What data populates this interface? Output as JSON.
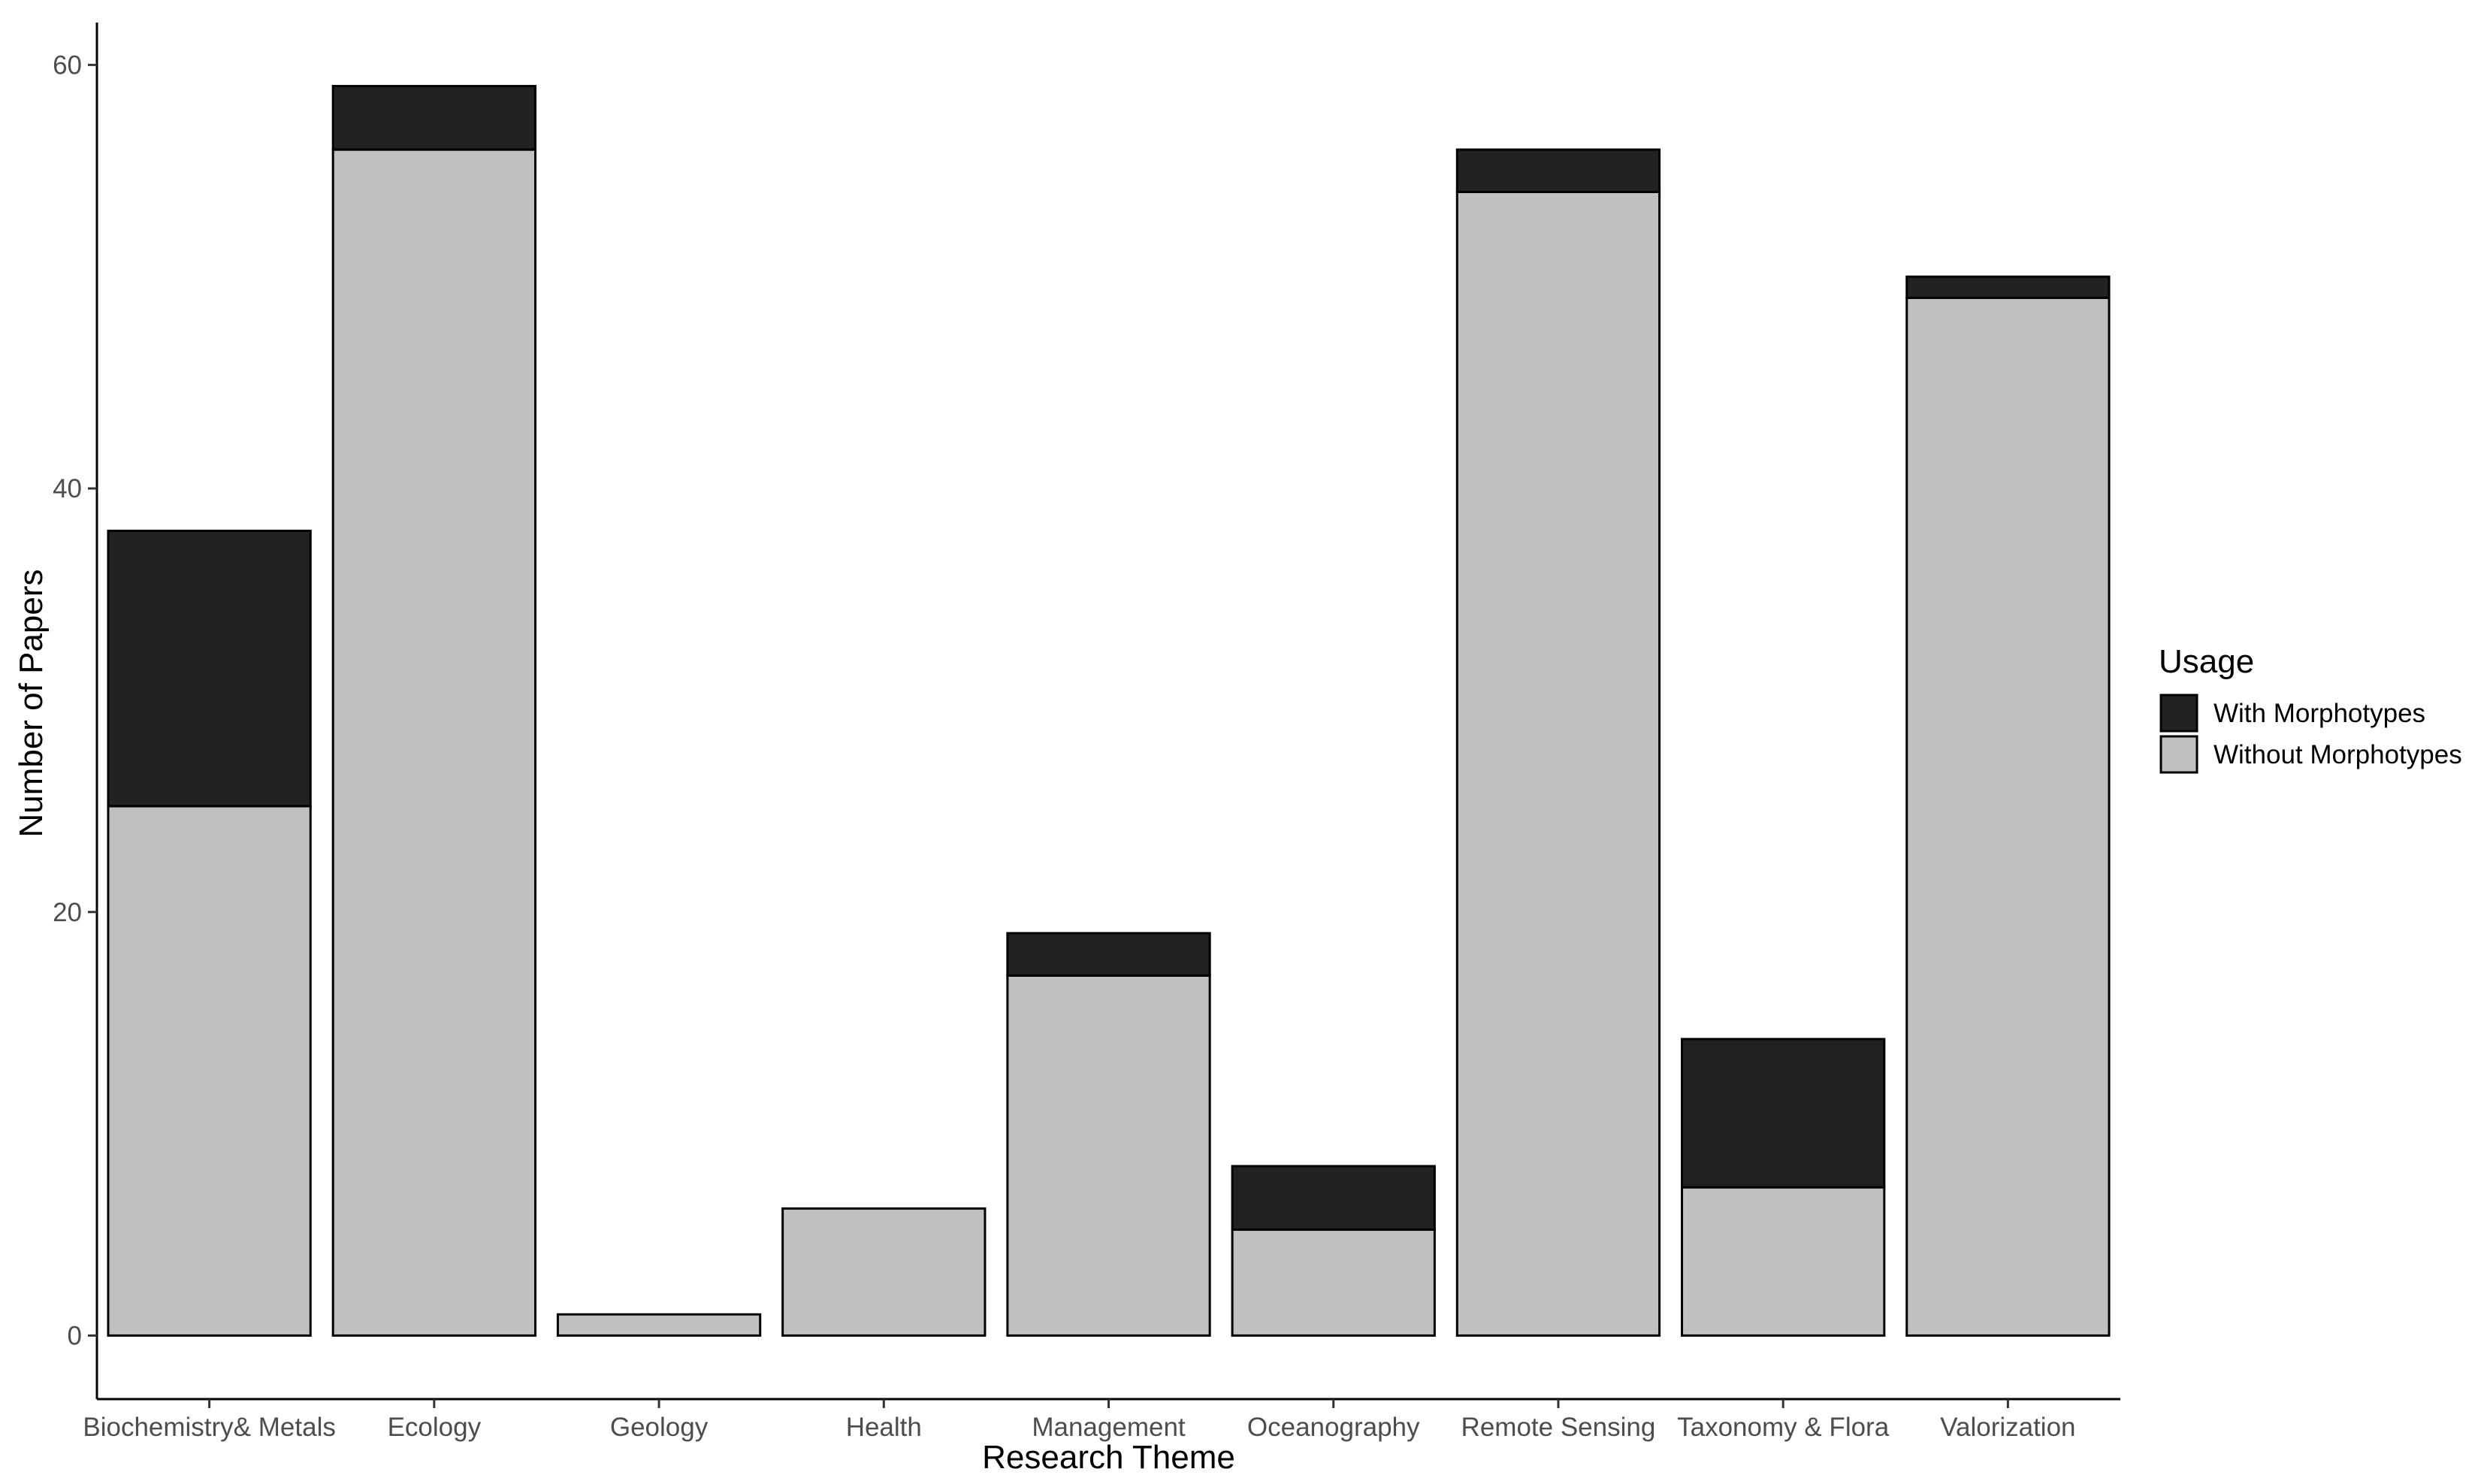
{
  "chart_data": {
    "type": "bar",
    "stacked": true,
    "categories": [
      "Biochemistry& Metals",
      "Ecology",
      "Geology",
      "Health",
      "Management",
      "Oceanography",
      "Remote Sensing",
      "Taxonomy & Flora",
      "Valorization"
    ],
    "series": [
      {
        "name": "Without Morphotypes",
        "values": [
          25,
          56,
          1,
          6,
          17,
          5,
          54,
          7,
          49
        ],
        "color": "#c0c0c0"
      },
      {
        "name": "With Morphotypes",
        "values": [
          13,
          3,
          0,
          0,
          2,
          3,
          2,
          7,
          1
        ],
        "color": "#222222"
      }
    ],
    "xlabel": "Research Theme",
    "ylabel": "Number of Papers",
    "ylim": [
      -3,
      62
    ],
    "yticks": [
      0,
      20,
      40,
      60
    ],
    "grid": false,
    "legend": {
      "title": "Usage",
      "position": "right",
      "entries": [
        "With Morphotypes",
        "Without Morphotypes"
      ]
    }
  }
}
